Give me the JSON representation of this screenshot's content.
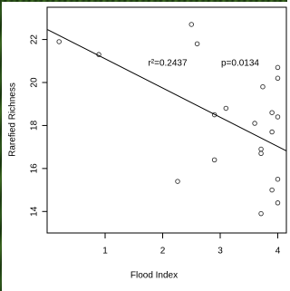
{
  "chart_data": {
    "type": "scatter",
    "x_label": "Flood Index",
    "y_label": "Rarefied Richness",
    "annotations": [
      "r²=0.2437",
      "p=0.0134"
    ],
    "xlim": [
      0,
      4.15
    ],
    "ylim": [
      13.0,
      23.5
    ],
    "xticks": [
      1,
      2,
      3,
      4
    ],
    "yticks": [
      14,
      16,
      18,
      20,
      22
    ],
    "series": [
      {
        "color": "#333333",
        "x": [
          0.2,
          0.89,
          2.5,
          2.6,
          3.74,
          4.0,
          4.0,
          3.1,
          2.9,
          3.6,
          3.9,
          4.0,
          3.9,
          3.71,
          3.71,
          2.9,
          2.26,
          4.0,
          3.9,
          4.0,
          3.71
        ],
        "values": [
          21.9,
          21.3,
          22.7,
          21.8,
          19.8,
          20.7,
          20.2,
          18.8,
          18.5,
          18.1,
          18.6,
          18.4,
          17.7,
          16.9,
          16.7,
          16.4,
          15.4,
          15.5,
          15.0,
          14.4,
          13.9
        ]
      }
    ],
    "fit": {
      "color": "#000000",
      "x": [
        0,
        4.15
      ],
      "values": [
        22.46,
        16.82
      ]
    }
  }
}
